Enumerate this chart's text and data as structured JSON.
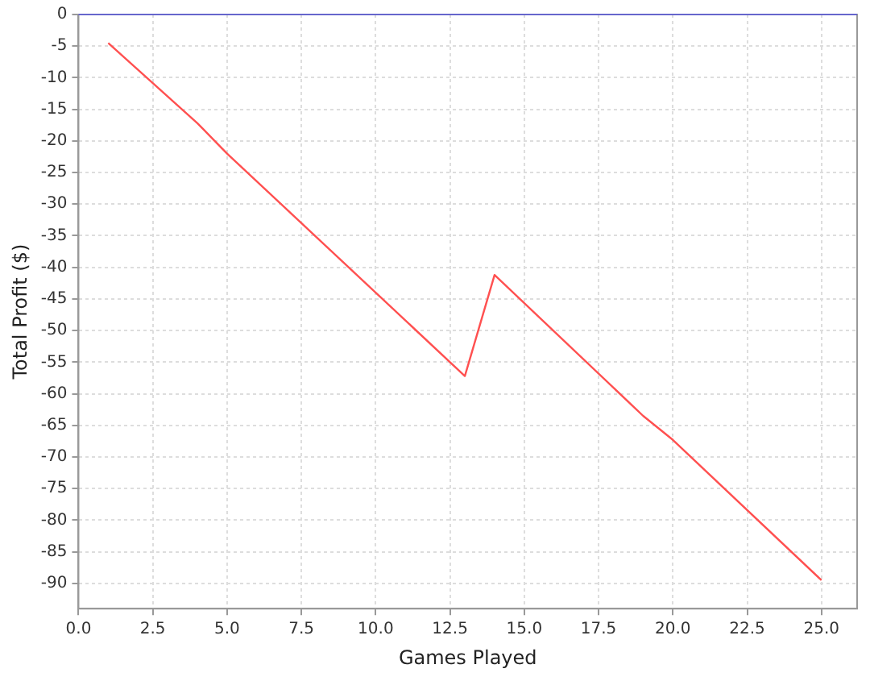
{
  "chart_data": {
    "type": "line",
    "xlabel": "Games Played",
    "ylabel": "Total Profit ($)",
    "x": [
      1,
      4,
      5,
      13,
      14,
      19,
      20,
      25
    ],
    "series": [
      {
        "color": "#ff5050",
        "values": [
          -4.5,
          -17.2,
          -22,
          -57.2,
          -41.2,
          -63.5,
          -67.3,
          -89.5
        ]
      }
    ],
    "xlim": [
      0,
      26.2
    ],
    "xticks": [
      {
        "value": 0,
        "label": "0.0"
      },
      {
        "value": 2.5,
        "label": "2.5"
      },
      {
        "value": 5,
        "label": "5.0"
      },
      {
        "value": 7.5,
        "label": "7.5"
      },
      {
        "value": 10,
        "label": "10.0"
      },
      {
        "value": 12.5,
        "label": "12.5"
      },
      {
        "value": 15,
        "label": "15.0"
      },
      {
        "value": 17.5,
        "label": "17.5"
      },
      {
        "value": 20,
        "label": "20.0"
      },
      {
        "value": 22.5,
        "label": "22.5"
      },
      {
        "value": 25,
        "label": "25.0"
      }
    ],
    "ylim": [
      -94,
      0
    ],
    "yticks": [
      0,
      -5,
      -10,
      -15,
      -20,
      -25,
      -30,
      -35,
      -40,
      -45,
      -50,
      -55,
      -60,
      -65,
      -70,
      -75,
      -80,
      -85,
      -90
    ],
    "ref_lines": [
      {
        "axis": "y",
        "value": 0,
        "color": "#6666cc"
      }
    ],
    "grid": true,
    "marker": "none",
    "line_style": "solid",
    "legend": false
  }
}
